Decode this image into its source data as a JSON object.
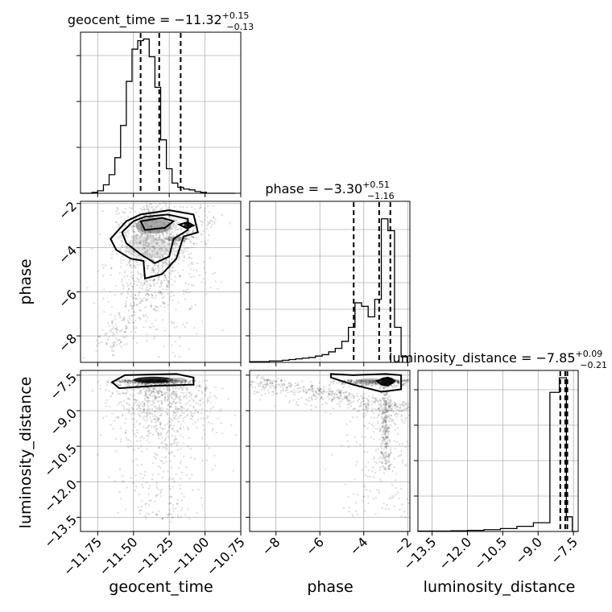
{
  "chart_data": {
    "type": "corner",
    "parameters": [
      {
        "name": "geocent_time",
        "axis_label": "geocent_time",
        "range": [
          -11.87,
          -10.75
        ],
        "ticks": [
          -11.75,
          -11.5,
          -11.25,
          -11.0,
          -10.75
        ],
        "tick_labels": [
          "−11.75",
          "−11.50",
          "−11.25",
          "−11.00",
          "−10.75"
        ],
        "median": -11.32,
        "plus": 0.15,
        "minus": 0.13,
        "title": {
          "prefix": "geocent_time = −11.32",
          "sup": "+0.15",
          "sub": "−0.13"
        },
        "quantiles": [
          -11.45,
          -11.32,
          -11.17
        ],
        "hist": {
          "edges": [
            -11.87,
            -11.83,
            -11.79,
            -11.75,
            -11.71,
            -11.67,
            -11.63,
            -11.59,
            -11.55,
            -11.51,
            -11.47,
            -11.43,
            -11.39,
            -11.35,
            -11.31,
            -11.27,
            -11.23,
            -11.19,
            -11.15,
            -11.11,
            -11.07,
            -11.03,
            -10.99,
            -10.95,
            -10.91,
            -10.87,
            -10.83,
            -10.79
          ],
          "counts": [
            0,
            0,
            1,
            3,
            10,
            22,
            42,
            80,
            132,
            170,
            180,
            182,
            161,
            125,
            63,
            29,
            12,
            7,
            5,
            4,
            2,
            1,
            0,
            0,
            0,
            0,
            0
          ],
          "max": 190
        }
      },
      {
        "name": "phase",
        "axis_label": "phase",
        "range": [
          -9.2,
          -1.9
        ],
        "ticks": [
          -8,
          -6,
          -4,
          -2
        ],
        "tick_labels": [
          "−8",
          "−6",
          "−4",
          "−2"
        ],
        "median": -3.3,
        "plus": 0.51,
        "minus": 1.16,
        "title": {
          "prefix": "phase = −3.30",
          "sup": "+0.51",
          "sub": "−1.16"
        },
        "quantiles": [
          -4.46,
          -3.3,
          -2.79
        ],
        "hist": {
          "edges": [
            -9.2,
            -8.9,
            -8.6,
            -8.3,
            -8.0,
            -7.7,
            -7.4,
            -7.1,
            -6.8,
            -6.5,
            -6.2,
            -5.9,
            -5.6,
            -5.3,
            -5.0,
            -4.7,
            -4.4,
            -4.1,
            -3.8,
            -3.5,
            -3.2,
            -2.9,
            -2.6,
            -2.3,
            -2.0
          ],
          "counts": [
            1,
            1,
            1,
            2,
            2,
            3,
            4,
            5,
            6,
            7,
            9,
            11,
            15,
            20,
            30,
            50,
            85,
            80,
            65,
            90,
            205,
            188,
            50,
            8
          ],
          "max": 230
        }
      },
      {
        "name": "luminosity_distance",
        "axis_label": "luminosity_distance",
        "range": [
          -14.1,
          -7.3
        ],
        "ticks": [
          -13.5,
          -12.0,
          -10.5,
          -9.0,
          -7.5
        ],
        "tick_labels": [
          "−13.5",
          "−12.0",
          "−10.5",
          "−9.0",
          "−7.5"
        ],
        "median": -7.85,
        "plus": 0.09,
        "minus": 0.21,
        "title": {
          "prefix": "luminosity_distance = −7.85",
          "sup": "+0.09",
          "sub": "−0.21"
        },
        "quantiles": [
          -8.06,
          -7.85,
          -7.76
        ],
        "hist": {
          "edges": [
            -14.1,
            -13.4,
            -12.7,
            -12.0,
            -11.3,
            -10.6,
            -9.9,
            -9.2,
            -8.5,
            -8.1,
            -7.8,
            -7.55,
            -7.3
          ],
          "counts": [
            1,
            1,
            2,
            3,
            5,
            8,
            14,
            24,
            380,
            420,
            40,
            0
          ],
          "max": 440
        }
      }
    ],
    "ylabels": {
      "row1": "phase",
      "row2": "luminosity_distance"
    },
    "contour_levels": 3,
    "grid": true
  }
}
